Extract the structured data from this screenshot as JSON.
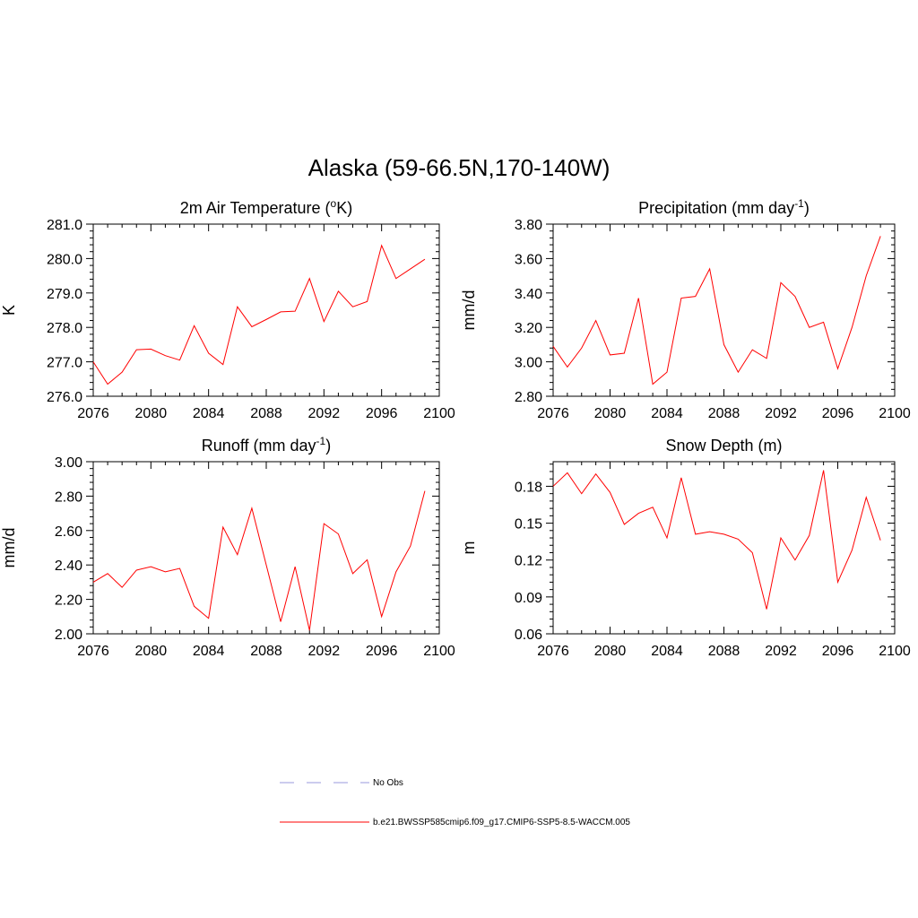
{
  "figure": {
    "title": "Alaska (59-66.5N,170-140W)"
  },
  "legend": {
    "entries": [
      {
        "label": "No Obs",
        "color": "#9999dd",
        "dash": true
      },
      {
        "label": "b.e21.BWSSP585cmip6.f09_g17.CMIP6-SSP5-8.5-WACCM.005",
        "color": "#ff0000",
        "dash": false
      }
    ]
  },
  "chart_data": [
    {
      "type": "line",
      "title": "2m Air Temperature (",
      "title_sup": "o",
      "title_suffix": "K)",
      "ylabel": "K",
      "xlim": [
        2076,
        2100
      ],
      "xticks": [
        2076,
        2080,
        2084,
        2088,
        2092,
        2096,
        2100
      ],
      "ylim": [
        276.0,
        281.0
      ],
      "yticks": [
        "276.0",
        "277.0",
        "278.0",
        "279.0",
        "280.0",
        "281.0"
      ],
      "x": [
        2076,
        2077,
        2078,
        2079,
        2080,
        2081,
        2082,
        2083,
        2084,
        2085,
        2086,
        2087,
        2088,
        2089,
        2090,
        2091,
        2092,
        2093,
        2094,
        2095,
        2096,
        2097,
        2098,
        2099
      ],
      "series": [
        {
          "color": "#ff0000",
          "values": [
            277.0,
            276.35,
            276.7,
            277.35,
            277.37,
            277.18,
            277.05,
            278.05,
            277.25,
            276.92,
            278.6,
            278.02,
            278.23,
            278.45,
            278.47,
            279.42,
            278.17,
            279.05,
            278.6,
            278.75,
            280.38,
            279.42,
            279.7,
            279.98
          ]
        }
      ]
    },
    {
      "type": "line",
      "title": "Precipitation (mm day",
      "title_sup": "-1",
      "title_suffix": ")",
      "ylabel": "mm/d",
      "xlim": [
        2076,
        2100
      ],
      "xticks": [
        2076,
        2080,
        2084,
        2088,
        2092,
        2096,
        2100
      ],
      "ylim": [
        2.8,
        3.8
      ],
      "yticks": [
        "2.80",
        "3.00",
        "3.20",
        "3.40",
        "3.60",
        "3.80"
      ],
      "x": [
        2076,
        2077,
        2078,
        2079,
        2080,
        2081,
        2082,
        2083,
        2084,
        2085,
        2086,
        2087,
        2088,
        2089,
        2090,
        2091,
        2092,
        2093,
        2094,
        2095,
        2096,
        2097,
        2098,
        2099
      ],
      "series": [
        {
          "color": "#ff0000",
          "values": [
            3.09,
            2.97,
            3.08,
            3.24,
            3.04,
            3.05,
            3.37,
            2.87,
            2.94,
            3.37,
            3.38,
            3.54,
            3.1,
            2.94,
            3.07,
            3.02,
            3.46,
            3.38,
            3.2,
            3.23,
            2.96,
            3.2,
            3.5,
            3.73
          ]
        }
      ]
    },
    {
      "type": "line",
      "title": "Runoff (mm day",
      "title_sup": "-1",
      "title_suffix": ")",
      "ylabel": "mm/d",
      "xlim": [
        2076,
        2100
      ],
      "xticks": [
        2076,
        2080,
        2084,
        2088,
        2092,
        2096,
        2100
      ],
      "ylim": [
        2.0,
        3.0
      ],
      "yticks": [
        "2.00",
        "2.20",
        "2.40",
        "2.60",
        "2.80",
        "3.00"
      ],
      "x": [
        2076,
        2077,
        2078,
        2079,
        2080,
        2081,
        2082,
        2083,
        2084,
        2085,
        2086,
        2087,
        2088,
        2089,
        2090,
        2091,
        2092,
        2093,
        2094,
        2095,
        2096,
        2097,
        2098,
        2099
      ],
      "series": [
        {
          "color": "#ff0000",
          "values": [
            2.3,
            2.35,
            2.27,
            2.37,
            2.39,
            2.36,
            2.38,
            2.16,
            2.09,
            2.62,
            2.46,
            2.73,
            2.4,
            2.07,
            2.39,
            2.02,
            2.64,
            2.58,
            2.35,
            2.43,
            2.1,
            2.36,
            2.51,
            2.83
          ]
        }
      ]
    },
    {
      "type": "line",
      "title": "Snow Depth (m)",
      "title_sup": "",
      "title_suffix": "",
      "ylabel": "m",
      "xlim": [
        2076,
        2100
      ],
      "xticks": [
        2076,
        2080,
        2084,
        2088,
        2092,
        2096,
        2100
      ],
      "ylim": [
        0.06,
        0.2
      ],
      "yticks": [
        "0.06",
        "0.09",
        "0.12",
        "0.15",
        "0.18"
      ],
      "ytick_values": [
        0.06,
        0.09,
        0.12,
        0.15,
        0.18
      ],
      "x": [
        2076,
        2077,
        2078,
        2079,
        2080,
        2081,
        2082,
        2083,
        2084,
        2085,
        2086,
        2087,
        2088,
        2089,
        2090,
        2091,
        2092,
        2093,
        2094,
        2095,
        2096,
        2097,
        2098,
        2099
      ],
      "series": [
        {
          "color": "#ff0000",
          "values": [
            0.18,
            0.191,
            0.174,
            0.19,
            0.175,
            0.149,
            0.158,
            0.163,
            0.138,
            0.187,
            0.141,
            0.143,
            0.141,
            0.137,
            0.126,
            0.08,
            0.138,
            0.12,
            0.14,
            0.193,
            0.102,
            0.128,
            0.171,
            0.136
          ]
        }
      ]
    }
  ]
}
